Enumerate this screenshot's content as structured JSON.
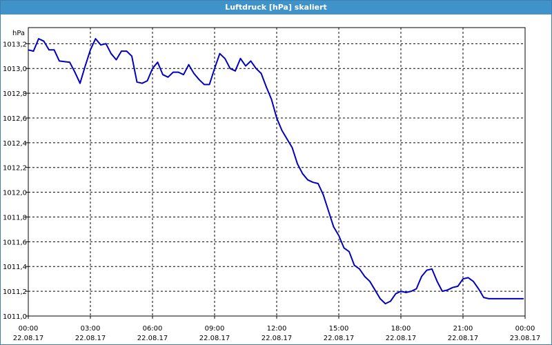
{
  "window": {
    "title": "Luftdruck [hPa] skaliert"
  },
  "colors": {
    "title_bar": "#3f93c8",
    "series": "#0000c0",
    "grid": "#000000",
    "background": "#ffffff"
  },
  "chart_data": {
    "type": "line",
    "title": "Luftdruck [hPa] skaliert",
    "ylabel": "hPa",
    "xlabel": "",
    "ylim": [
      1011.0,
      1013.33
    ],
    "xlim": [
      "22.08.17 00:00",
      "23.08.17 00:00"
    ],
    "grid": true,
    "legend": "none",
    "x_ticks": [
      {
        "time": "00:00",
        "date": "22.08.17"
      },
      {
        "time": "03:00",
        "date": "22.08.17"
      },
      {
        "time": "06:00",
        "date": "22.08.17"
      },
      {
        "time": "09:00",
        "date": "22.08.17"
      },
      {
        "time": "12:00",
        "date": "22.08.17"
      },
      {
        "time": "15:00",
        "date": "22.08.17"
      },
      {
        "time": "18:00",
        "date": "22.08.17"
      },
      {
        "time": "21:00",
        "date": "22.08.17"
      },
      {
        "time": "00:00",
        "date": "23.08.17"
      }
    ],
    "y_ticks": [
      "1011,0",
      "1011,2",
      "1011,4",
      "1011,6",
      "1011,8",
      "1012,0",
      "1012,2",
      "1012,4",
      "1012,6",
      "1012,8",
      "1013,0",
      "1013,2"
    ],
    "series": [
      {
        "x": [
          "00:00",
          "00:15",
          "00:30",
          "00:45",
          "01:00",
          "01:15",
          "01:30",
          "02:00",
          "02:15",
          "02:30",
          "02:45",
          "03:00",
          "03:15",
          "03:30",
          "03:45",
          "04:00",
          "04:15",
          "04:30",
          "04:45",
          "05:00",
          "05:15",
          "05:30",
          "05:45",
          "06:00",
          "06:15",
          "06:30",
          "06:45",
          "07:00",
          "07:15",
          "07:30",
          "07:45",
          "08:00",
          "08:15",
          "08:30",
          "08:45",
          "09:00",
          "09:15",
          "09:30",
          "09:45",
          "10:00",
          "10:15",
          "10:30",
          "10:45",
          "11:00",
          "11:15",
          "11:30",
          "11:45",
          "12:00",
          "12:15",
          "12:30",
          "12:45",
          "13:00",
          "13:15",
          "13:30",
          "13:45",
          "14:00",
          "14:15",
          "14:30",
          "14:45",
          "15:00",
          "15:15",
          "15:30",
          "15:45",
          "16:00",
          "16:15",
          "16:30",
          "16:45",
          "17:00",
          "17:15",
          "17:30",
          "17:45",
          "18:00",
          "18:15",
          "18:30",
          "18:45",
          "19:00",
          "19:15",
          "19:30",
          "19:45",
          "20:00",
          "20:15",
          "20:30",
          "20:45",
          "21:00",
          "21:15",
          "21:30",
          "21:45",
          "22:00",
          "22:15",
          "22:30",
          "22:45",
          "23:00",
          "23:15",
          "23:30",
          "23:45",
          "23:55"
        ],
        "y": [
          1013.15,
          1013.14,
          1013.24,
          1013.22,
          1013.15,
          1013.15,
          1013.06,
          1013.05,
          1012.97,
          1012.88,
          1013.02,
          1013.15,
          1013.24,
          1013.19,
          1013.2,
          1013.12,
          1013.07,
          1013.14,
          1013.14,
          1013.1,
          1012.89,
          1012.88,
          1012.9,
          1013.0,
          1013.05,
          1012.95,
          1012.93,
          1012.97,
          1012.97,
          1012.95,
          1013.03,
          1012.96,
          1012.91,
          1012.87,
          1012.87,
          1013.0,
          1013.12,
          1013.08,
          1013.0,
          1012.98,
          1013.08,
          1013.02,
          1013.06,
          1013.0,
          1012.96,
          1012.85,
          1012.75,
          1012.6,
          1012.5,
          1012.43,
          1012.36,
          1012.23,
          1012.15,
          1012.1,
          1012.08,
          1012.07,
          1011.98,
          1011.85,
          1011.72,
          1011.65,
          1011.55,
          1011.52,
          1011.41,
          1011.38,
          1011.32,
          1011.28,
          1011.21,
          1011.14,
          1011.1,
          1011.12,
          1011.18,
          1011.2,
          1011.19,
          1011.2,
          1011.22,
          1011.32,
          1011.37,
          1011.38,
          1011.28,
          1011.2,
          1011.21,
          1011.23,
          1011.24,
          1011.3,
          1011.31,
          1011.28,
          1011.22,
          1011.15,
          1011.14,
          1011.14,
          1011.14,
          1011.14,
          1011.14,
          1011.14,
          1011.14,
          1011.14
        ]
      }
    ]
  }
}
